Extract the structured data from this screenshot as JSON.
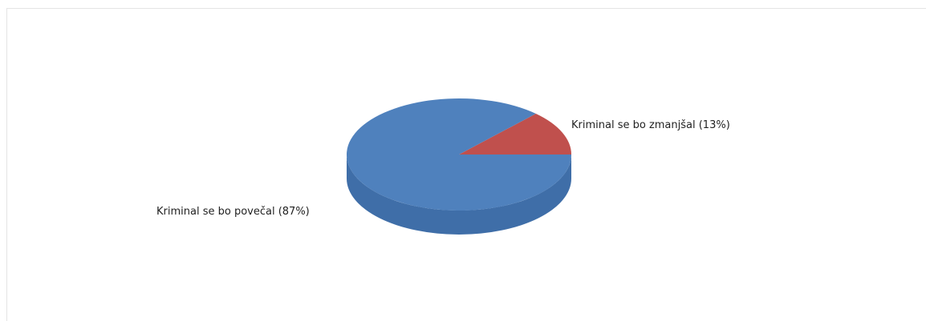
{
  "chart_data": {
    "type": "pie",
    "title": "",
    "slices": [
      {
        "label": "Kriminal se bo zmanjšal (13%)",
        "value": 13,
        "color": "#c0504d",
        "side_color": "#9c3c39"
      },
      {
        "label": "Kriminal se bo povečal (87%)",
        "value": 87,
        "color": "#4f81bd",
        "side_color": "#3f6ea8"
      }
    ],
    "style": "3d",
    "legend": "none"
  }
}
